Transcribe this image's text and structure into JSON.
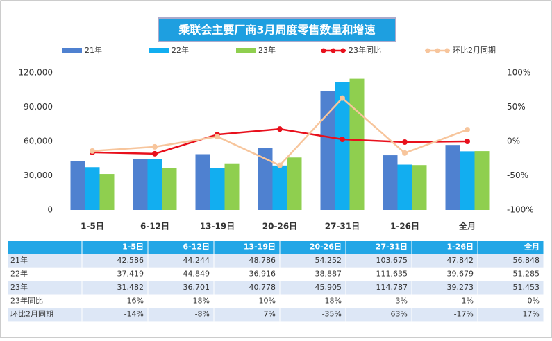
{
  "chart_data": {
    "type": "bar",
    "title": "乘联会主要厂商3月周度零售数量和增速",
    "categories": [
      "1-5日",
      "6-12日",
      "13-19日",
      "20-26日",
      "27-31日",
      "1-26日",
      "全月"
    ],
    "series": [
      {
        "name": "21年",
        "color": "#4f81d0",
        "values": [
          42586,
          44244,
          48786,
          54252,
          103675,
          47842,
          56848
        ],
        "value_labels": [
          "42,586",
          "44,244",
          "48,786",
          "54,252",
          "103,675",
          "47,842",
          "56,848"
        ]
      },
      {
        "name": "22年",
        "color": "#12aef0",
        "values": [
          37419,
          44849,
          36916,
          38887,
          111635,
          39679,
          51285
        ],
        "value_labels": [
          "37,419",
          "44,849",
          "36,916",
          "38,887",
          "111,635",
          "39,679",
          "51,285"
        ]
      },
      {
        "name": "23年",
        "color": "#8fcf4f",
        "values": [
          31482,
          36701,
          40778,
          45905,
          114787,
          39273,
          51453
        ],
        "value_labels": [
          "31,482",
          "36,701",
          "40,778",
          "45,905",
          "114,787",
          "39,273",
          "51,453"
        ]
      },
      {
        "name": "23年同比",
        "type": "line",
        "axis": "y2",
        "color": "#e8101c",
        "values": [
          -16,
          -18,
          10,
          18,
          3,
          -1,
          0
        ],
        "value_labels": [
          "-16%",
          "-18%",
          "10%",
          "18%",
          "3%",
          "-1%",
          "0%"
        ]
      },
      {
        "name": "环比2月同期",
        "type": "line",
        "axis": "y2",
        "color": "#f7c59c",
        "values": [
          -14,
          -8,
          7,
          -35,
          63,
          -17,
          17
        ],
        "value_labels": [
          "-14%",
          "-8%",
          "7%",
          "-35%",
          "63%",
          "-17%",
          "17%"
        ]
      }
    ],
    "ylim": [
      0,
      120000
    ],
    "yticks": [
      0,
      {
        "value": 30000,
        "label": "30,000"
      },
      {
        "value": 60000,
        "label": "60,000"
      },
      {
        "value": 90000,
        "label": "90,000"
      },
      {
        "value": 120000,
        "label": "120,000"
      }
    ],
    "y2lim": [
      -100,
      100
    ],
    "y2ticks": [
      {
        "value": -100,
        "label": "-100%"
      },
      {
        "value": -50,
        "label": "-50%"
      },
      {
        "value": 0,
        "label": "0%"
      },
      {
        "value": 50,
        "label": "50%"
      },
      {
        "value": 100,
        "label": "100%"
      }
    ],
    "legend": "top"
  }
}
